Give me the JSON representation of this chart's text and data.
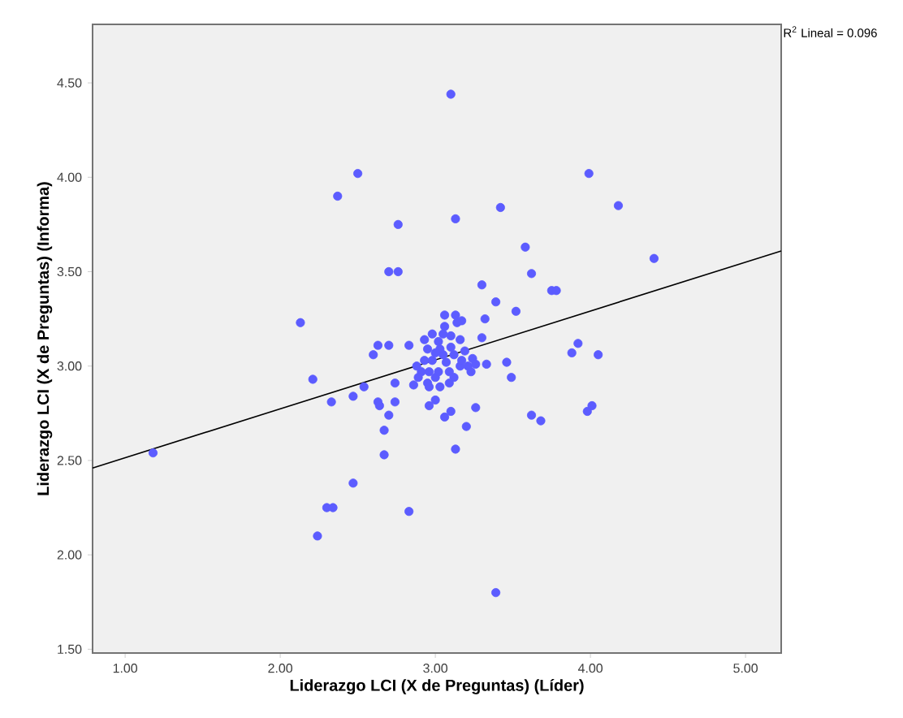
{
  "chart_data": {
    "type": "scatter",
    "xlabel": "Liderazgo LCI (X de Preguntas) (Líder)",
    "ylabel": "Liderazgo LCI (X de Preguntas) (Informa)",
    "annotations": [
      "R$^{2}$ Lineal = 0.096"
    ],
    "xlim": [
      0.79,
      5.23
    ],
    "ylim": [
      1.48,
      4.81
    ],
    "xticks": [
      {
        "value": 1,
        "label": "1.00"
      },
      {
        "value": 2,
        "label": "2.00"
      },
      {
        "value": 3,
        "label": "3.00"
      },
      {
        "value": 4,
        "label": "4.00"
      },
      {
        "value": 5,
        "label": "5.00"
      }
    ],
    "yticks": [
      {
        "value": 1.5,
        "label": "1.50"
      },
      {
        "value": 2,
        "label": "2.00"
      },
      {
        "value": 2.5,
        "label": "2.50"
      },
      {
        "value": 3,
        "label": "3.00"
      },
      {
        "value": 3.5,
        "label": "3.50"
      },
      {
        "value": 4,
        "label": "4.00"
      },
      {
        "value": 4.5,
        "label": "4.50"
      }
    ],
    "marker": "circle",
    "series": [
      {
        "type": "scatter",
        "color": "#5c5cff",
        "x": [
          3.1,
          2.5,
          2.37,
          2.76,
          3.13,
          2.7,
          2.76,
          2.13,
          3.3,
          3.99,
          4.18,
          3.42,
          3.58,
          4.41,
          3.62,
          3.75,
          3.78,
          3.39,
          3.52,
          3.92,
          3.88,
          4.05,
          3.46,
          3.49,
          3.62,
          3.68,
          3.98,
          4.01,
          3.39,
          1.18,
          2.21,
          2.33,
          2.47,
          2.54,
          2.47,
          2.3,
          2.34,
          2.24,
          2.83,
          2.67,
          2.67,
          2.7,
          2.63,
          2.64,
          2.74,
          2.74,
          2.6,
          2.63,
          2.7,
          2.83,
          3.13,
          3.2,
          3.26,
          3.06,
          3.1,
          2.96,
          3.0,
          3.33,
          3.06,
          3.13,
          3.32,
          3.17,
          3.06,
          2.93,
          2.98,
          3.02,
          2.95,
          3.05,
          3.1,
          3.16,
          3.14,
          3.19,
          3.24,
          3.3,
          2.88,
          2.91,
          2.95,
          3.0,
          3.03,
          3.09,
          3.12,
          3.16,
          3.21,
          3.05,
          2.98,
          3.12,
          3.17,
          3.02,
          2.93,
          3.09,
          2.96,
          2.89,
          3.26,
          3.23,
          3.1,
          3.03,
          2.96,
          2.86,
          3.07,
          3.0
        ],
        "values": [
          4.44,
          4.02,
          3.9,
          3.75,
          3.78,
          3.5,
          3.5,
          3.23,
          3.43,
          4.02,
          3.85,
          3.84,
          3.63,
          3.57,
          3.49,
          3.4,
          3.4,
          3.34,
          3.29,
          3.12,
          3.07,
          3.06,
          3.02,
          2.94,
          2.74,
          2.71,
          2.76,
          2.79,
          1.8,
          2.54,
          2.93,
          2.81,
          2.84,
          2.89,
          2.38,
          2.25,
          2.25,
          2.1,
          2.23,
          2.53,
          2.66,
          2.74,
          2.81,
          2.79,
          2.81,
          2.91,
          3.06,
          3.11,
          3.11,
          3.11,
          2.56,
          2.68,
          2.78,
          2.73,
          2.76,
          2.79,
          2.82,
          3.01,
          3.27,
          3.27,
          3.25,
          3.24,
          3.21,
          3.14,
          3.17,
          3.13,
          3.09,
          3.17,
          3.16,
          3.14,
          3.23,
          3.08,
          3.04,
          3.15,
          3.0,
          2.97,
          2.91,
          2.94,
          2.89,
          2.97,
          2.94,
          3.0,
          3.0,
          3.06,
          3.03,
          3.06,
          3.03,
          2.97,
          3.03,
          2.91,
          2.89,
          2.94,
          3.01,
          2.97,
          3.1,
          3.09,
          2.97,
          2.9,
          3.02,
          3.07
        ]
      },
      {
        "type": "line",
        "color": "#000000",
        "marker": "none",
        "x": [
          0.79,
          5.23
        ],
        "values": [
          2.46,
          3.61
        ]
      }
    ]
  }
}
